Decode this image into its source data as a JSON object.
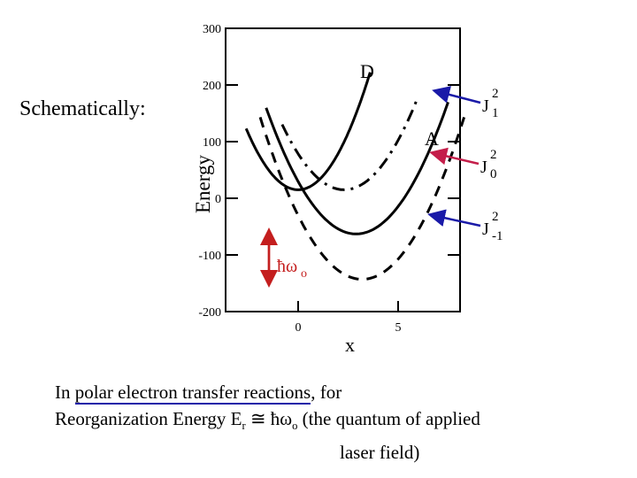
{
  "schematic_label": "Schematically:",
  "caption": {
    "line1_prefix": "In ",
    "line1_underlined": "polar electron transfer reactions",
    "line1_suffix": ", for",
    "line2": "Reorganization Energy E",
    "line2_sub": "r",
    "line2_rest": " ≅ ħω",
    "line2_sub2": "o",
    "line2_end": "  (the quantum  of applied",
    "line3": "laser field)"
  },
  "chart_data": {
    "type": "line",
    "ylabel": "Energy",
    "xlabel": "x",
    "yticks": [
      300,
      200,
      100,
      0,
      -100,
      -200
    ],
    "yticklabels": [
      "300",
      "200",
      "100",
      "0",
      "-100",
      "-200"
    ],
    "xticks": [
      0,
      5
    ],
    "xticklabels": [
      "0",
      "5"
    ],
    "ylim": [
      -200,
      300
    ],
    "xlim": [
      -4,
      10
    ],
    "grid": false,
    "series": [
      {
        "name": "D",
        "style": "solid",
        "min_x": 0,
        "min_y": 15,
        "curvature": 16,
        "x_range": [
          -2.6,
          3.6
        ]
      },
      {
        "name": "A",
        "style": "solid",
        "min_x": 2.9,
        "min_y": -63,
        "curvature": 11,
        "x_range": [
          -1.6,
          7.5
        ]
      },
      {
        "name": "",
        "style": "dashdot",
        "min_x": 2.3,
        "min_y": 15,
        "curvature": 12,
        "x_range": [
          -0.8,
          5.9
        ]
      },
      {
        "name": "",
        "style": "dashed",
        "min_x": 3.2,
        "min_y": -143,
        "curvature": 11,
        "x_range": [
          -1.9,
          8.3
        ]
      }
    ],
    "annotations": [
      {
        "text": "D"
      },
      {
        "text": "A"
      },
      {
        "text": "J",
        "sub": "1",
        "sup": "2",
        "color": "#1a1aa8"
      },
      {
        "text": "J",
        "sub": "0",
        "sup": "2",
        "color": "#c41e4a"
      },
      {
        "text": "J",
        "sub": "-1",
        "sup": "2",
        "color": "#1a1aa8"
      },
      {
        "text": "ħω",
        "sub": "o",
        "color": "#c41e1e"
      }
    ]
  }
}
